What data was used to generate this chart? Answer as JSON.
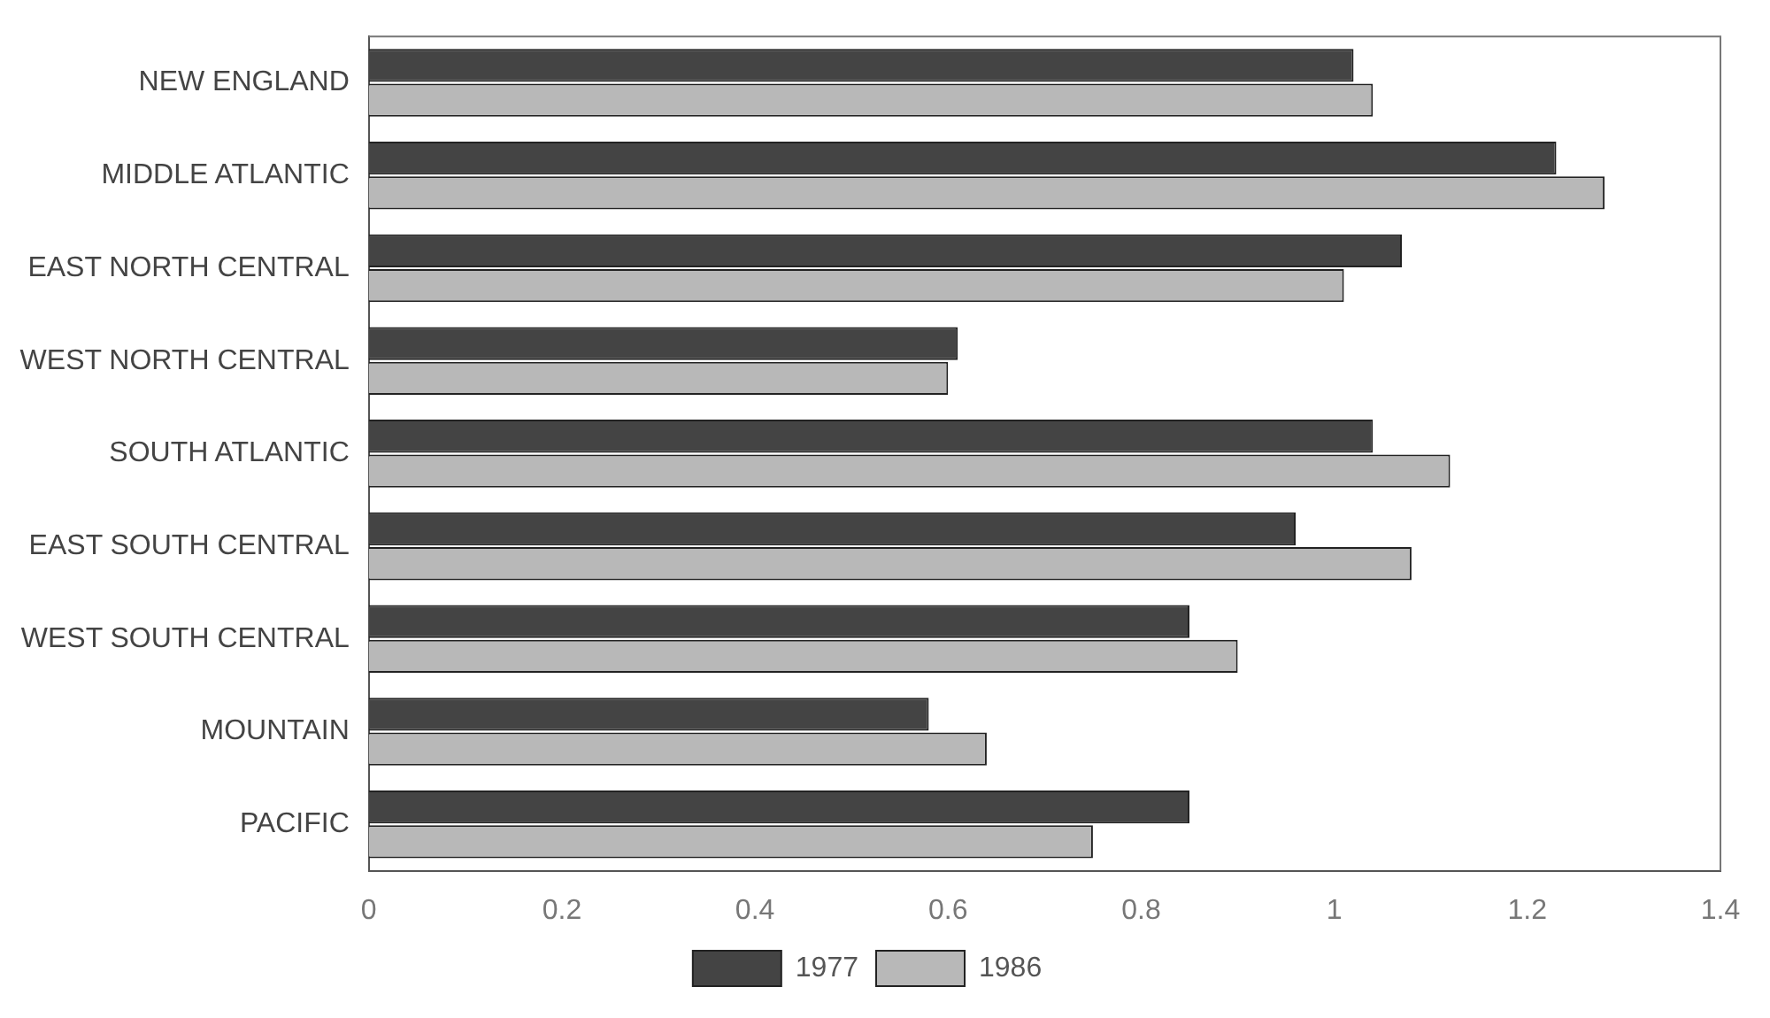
{
  "chart_data": {
    "type": "bar",
    "orientation": "horizontal",
    "categories": [
      "NEW ENGLAND",
      "MIDDLE ATLANTIC",
      "EAST NORTH CENTRAL",
      "WEST NORTH CENTRAL",
      "SOUTH ATLANTIC",
      "EAST SOUTH CENTRAL",
      "WEST SOUTH CENTRAL",
      "MOUNTAIN",
      "PACIFIC"
    ],
    "series": [
      {
        "name": "1977",
        "color": "#444444",
        "values": [
          1.02,
          1.23,
          1.07,
          0.61,
          1.04,
          0.96,
          0.85,
          0.58,
          0.85
        ]
      },
      {
        "name": "1986",
        "color": "#b8b8b8",
        "values": [
          1.04,
          1.28,
          1.01,
          0.6,
          1.12,
          1.08,
          0.9,
          0.64,
          0.75
        ]
      }
    ],
    "xlim": [
      0,
      1.4
    ],
    "xticks": [
      0,
      0.2,
      0.4,
      0.6,
      0.8,
      1,
      1.2,
      1.4
    ],
    "grid": false,
    "legend": "bottom"
  }
}
